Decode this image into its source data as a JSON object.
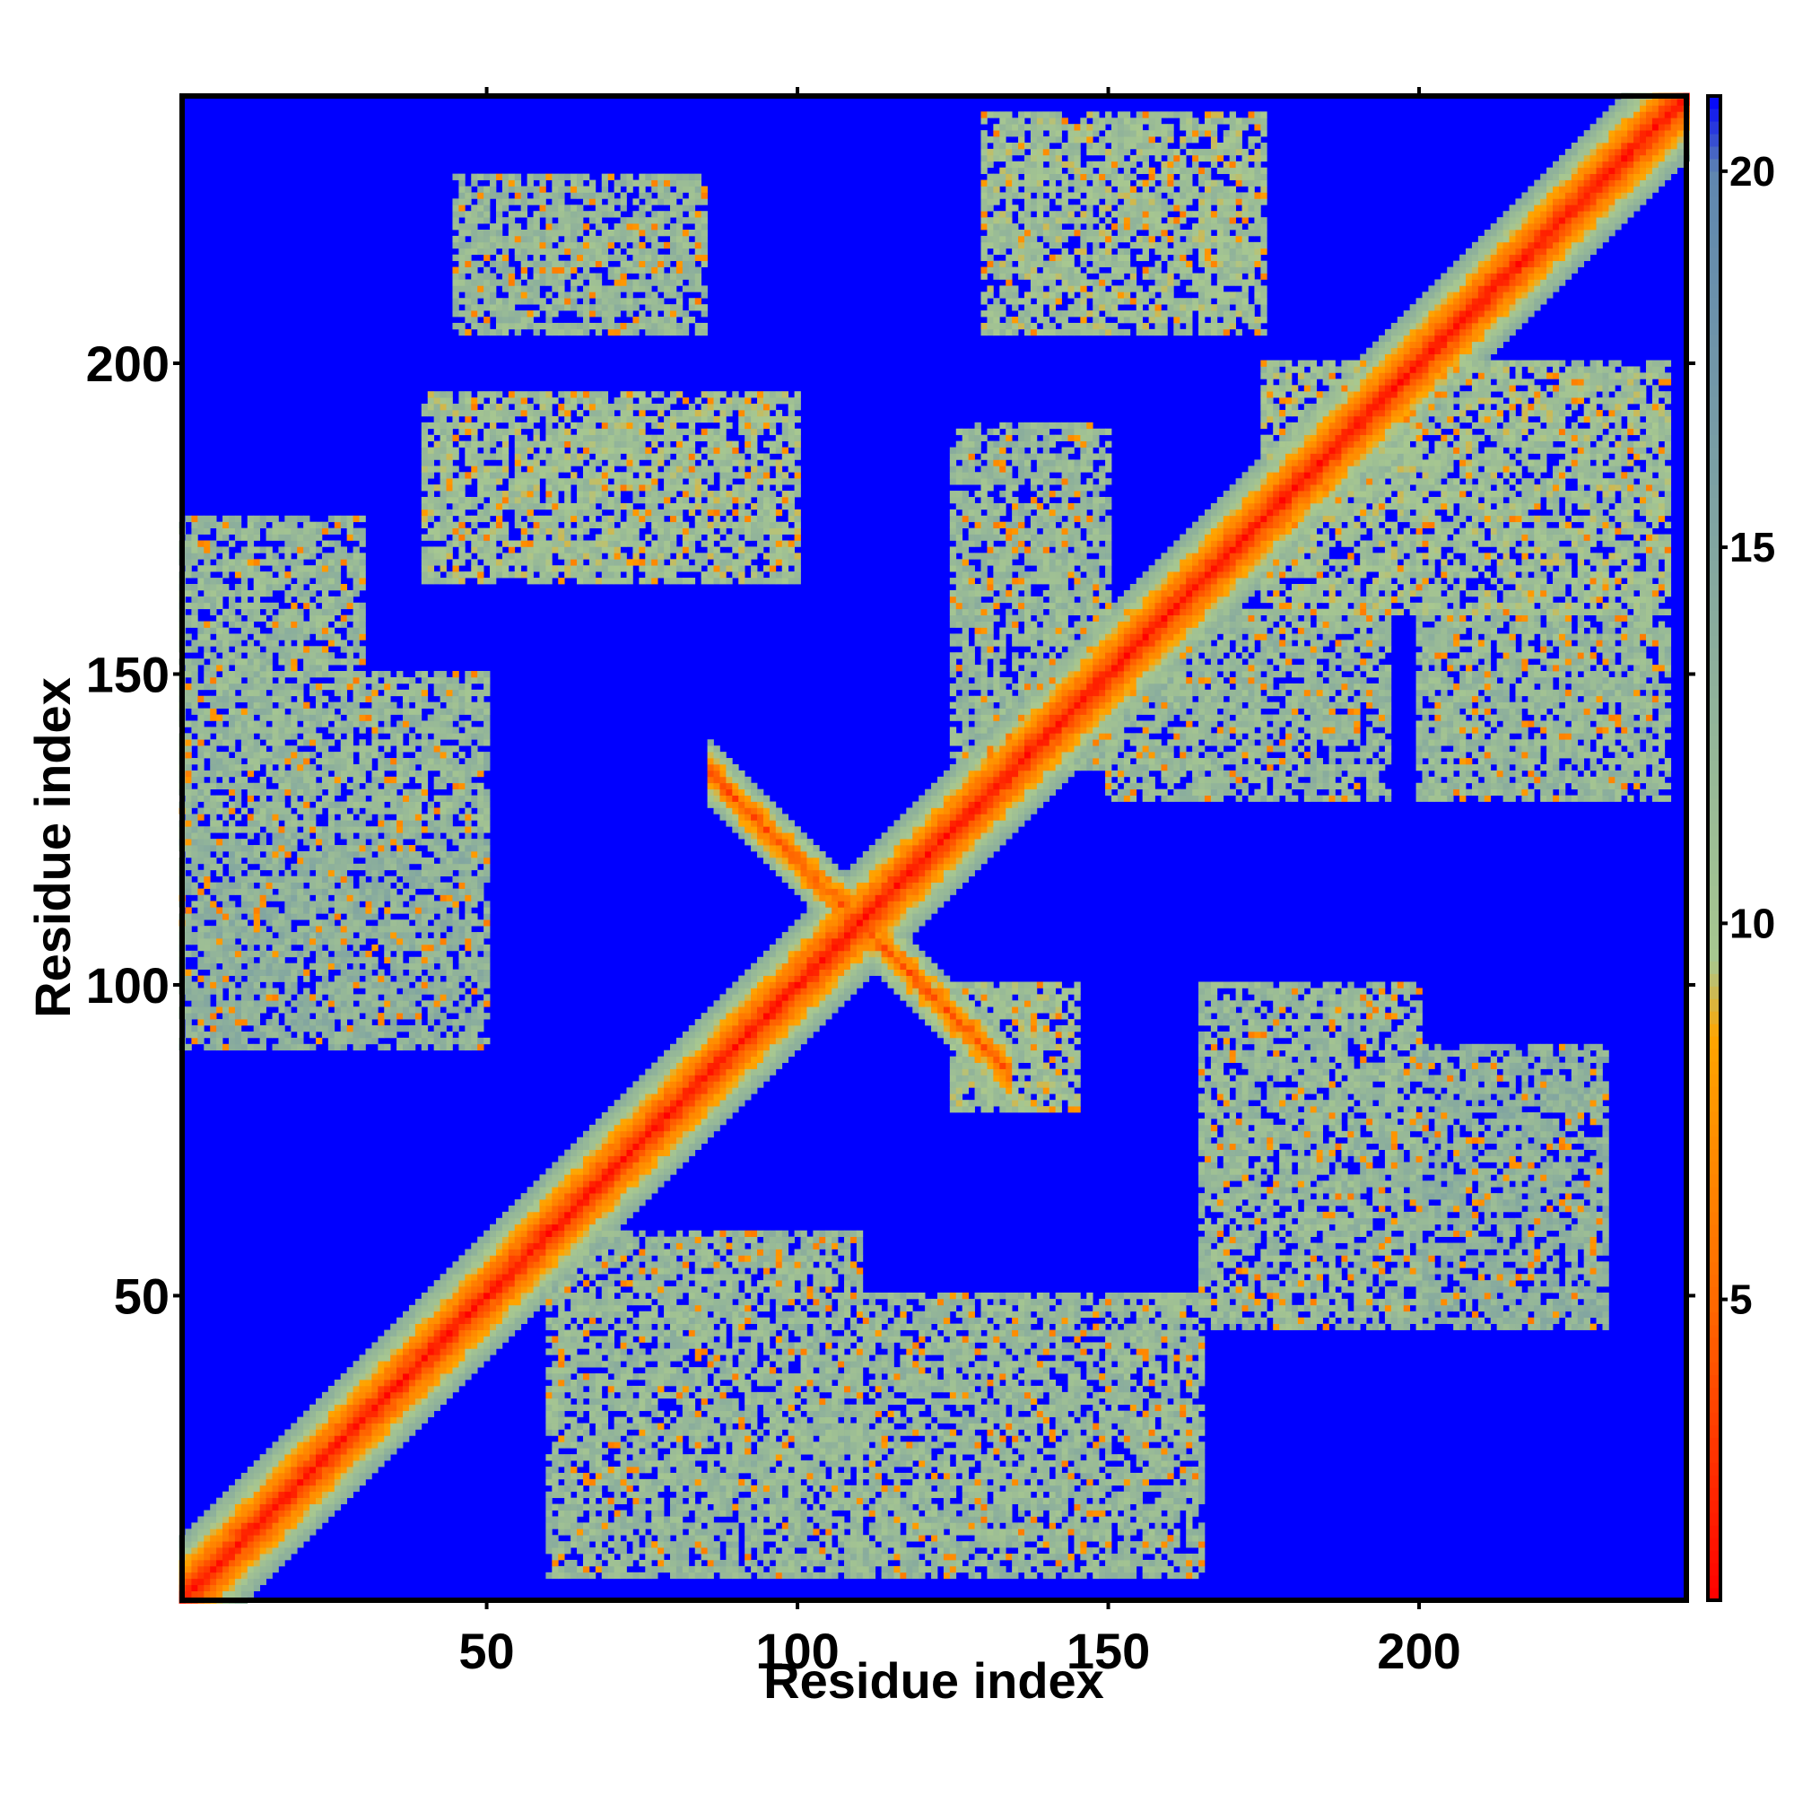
{
  "chart_data": {
    "type": "heatmap",
    "title": "",
    "xlabel": "Residue index",
    "ylabel": "Residue index",
    "xlim": [
      1,
      243
    ],
    "ylim": [
      1,
      243
    ],
    "x_ticks": [
      50,
      100,
      150,
      200
    ],
    "y_ticks": [
      50,
      100,
      150,
      200
    ],
    "colorbar": {
      "range": [
        1,
        21
      ],
      "ticks": [
        5,
        10,
        15,
        20
      ],
      "stops": [
        {
          "value": 1,
          "color": "#ff0000"
        },
        {
          "value": 5,
          "color": "#ff6a00"
        },
        {
          "value": 8.5,
          "color": "#ffa500"
        },
        {
          "value": 9.5,
          "color": "#a8c890"
        },
        {
          "value": 20,
          "color": "#5f86b0"
        },
        {
          "value": 21,
          "color": "#0000ff"
        }
      ]
    },
    "background_color": "#0000ff",
    "background_value": 21,
    "description_features": {
      "main_diagonal_band": true,
      "antidiagonal_crossing_center": [
        110,
        110
      ],
      "blocks": [
        {
          "x": [
            0,
            30
          ],
          "y": [
            150,
            175
          ],
          "level": 12
        },
        {
          "x": [
            0,
            50
          ],
          "y": [
            125,
            150
          ],
          "level": 12
        },
        {
          "x": [
            0,
            50
          ],
          "y": [
            90,
            125
          ],
          "level": 13
        },
        {
          "x": [
            40,
            100
          ],
          "y": [
            165,
            195
          ],
          "level": 11
        },
        {
          "x": [
            45,
            85
          ],
          "y": [
            205,
            230
          ],
          "level": 12
        },
        {
          "x": [
            130,
            175
          ],
          "y": [
            205,
            240
          ],
          "level": 11
        },
        {
          "x": [
            175,
            240
          ],
          "y": [
            160,
            200
          ],
          "level": 11
        },
        {
          "x": [
            200,
            240
          ],
          "y": [
            130,
            160
          ],
          "level": 12
        },
        {
          "x": [
            150,
            195
          ],
          "y": [
            130,
            160
          ],
          "level": 12
        },
        {
          "x": [
            125,
            150
          ],
          "y": [
            135,
            190
          ],
          "level": 12
        },
        {
          "x": [
            165,
            200
          ],
          "y": [
            45,
            100
          ],
          "level": 12
        },
        {
          "x": [
            200,
            230
          ],
          "y": [
            45,
            90
          ],
          "level": 13
        },
        {
          "x": [
            60,
            110
          ],
          "y": [
            5,
            60
          ],
          "level": 12
        },
        {
          "x": [
            110,
            165
          ],
          "y": [
            5,
            50
          ],
          "level": 12
        },
        {
          "x": [
            125,
            145
          ],
          "y": [
            80,
            100
          ],
          "level": 11
        }
      ]
    }
  }
}
